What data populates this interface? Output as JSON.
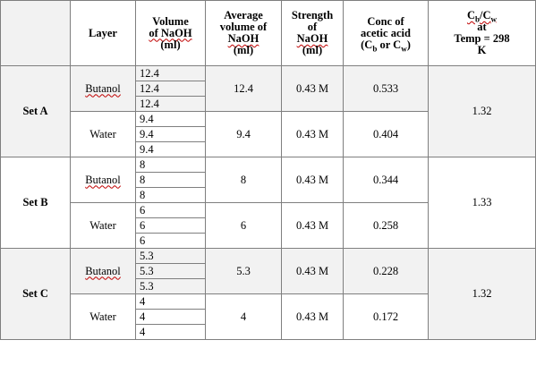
{
  "header": {
    "set": "",
    "layer": "Layer",
    "volume": [
      "Volume",
      "of NaOH",
      "(ml)"
    ],
    "average": [
      "Average",
      "volume of",
      "NaOH",
      "(ml)"
    ],
    "strength": [
      "Strength",
      "of",
      "NaOH",
      "(ml)"
    ],
    "conc": {
      "line1": "Conc of",
      "line2": "acetic acid",
      "line3_open": "(C",
      "sub_b": "b",
      "line3_or": " or C",
      "sub_w": "w",
      "line3_close": ")"
    },
    "ratio": {
      "c": "C",
      "sub_b": "b",
      "slash": "/C",
      "sub_w": "w",
      "line2": "at",
      "line3": "Temp = 298",
      "line4": "K"
    }
  },
  "sets": [
    {
      "name": "Set A",
      "ratio": "1.32",
      "rows": [
        {
          "layer": "Butanol",
          "volumes": [
            "12.4",
            "12.4",
            "12.4"
          ],
          "average": "12.4",
          "strength": "0.43 M",
          "conc": "0.533"
        },
        {
          "layer": "Water",
          "volumes": [
            "9.4",
            "9.4",
            "9.4"
          ],
          "average": "9.4",
          "strength": "0.43 M",
          "conc": "0.404"
        }
      ]
    },
    {
      "name": "Set B",
      "ratio": "1.33",
      "rows": [
        {
          "layer": "Butanol",
          "volumes": [
            "8",
            "8",
            "8"
          ],
          "average": "8",
          "strength": "0.43 M",
          "conc": "0.344"
        },
        {
          "layer": "Water",
          "volumes": [
            "6",
            "6",
            "6"
          ],
          "average": "6",
          "strength": "0.43 M",
          "conc": "0.258"
        }
      ]
    },
    {
      "name": "Set C",
      "ratio": "1.32",
      "rows": [
        {
          "layer": "Butanol",
          "volumes": [
            "5.3",
            "5.3",
            "5.3"
          ],
          "average": "5.3",
          "strength": "0.43 M",
          "conc": "0.228"
        },
        {
          "layer": "Water",
          "volumes": [
            "4",
            "4",
            "4"
          ],
          "average": "4",
          "strength": "0.43 M",
          "conc": "0.172"
        }
      ]
    }
  ]
}
